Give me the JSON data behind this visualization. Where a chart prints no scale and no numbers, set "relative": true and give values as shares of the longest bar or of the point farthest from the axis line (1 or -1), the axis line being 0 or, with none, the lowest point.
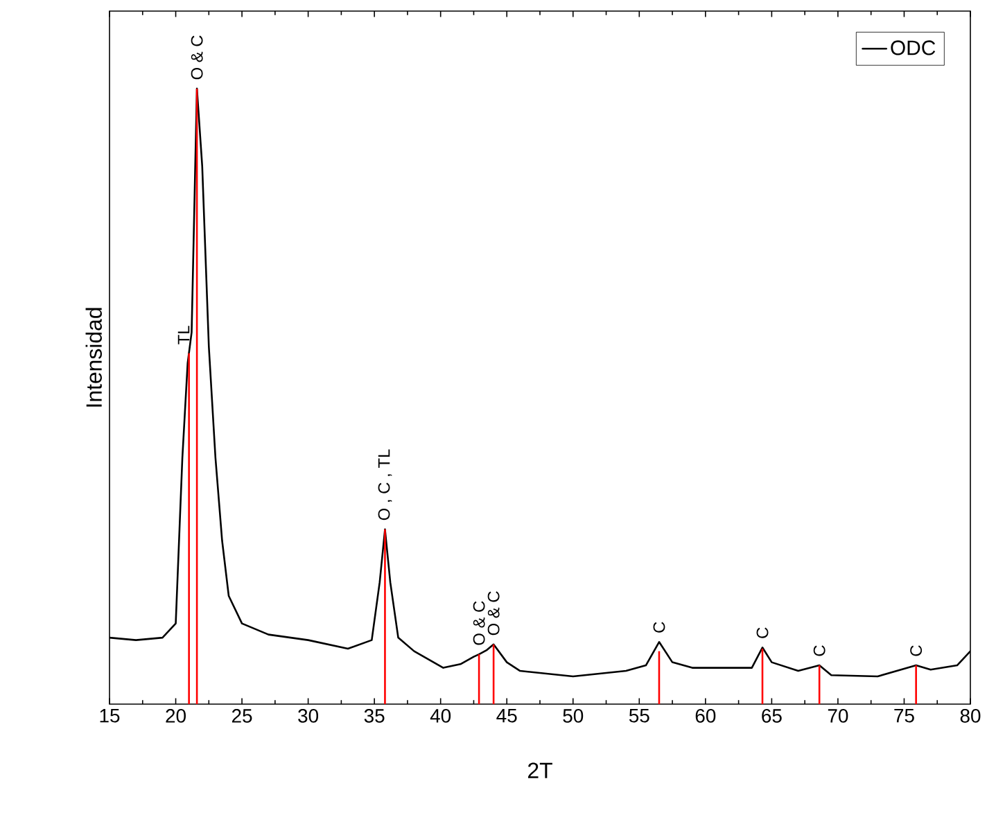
{
  "chart_data": {
    "type": "line",
    "xlabel": "2T",
    "ylabel": "Intensidad",
    "relative": true,
    "legend": "top right",
    "tick_labels": "x",
    "xlim": [
      15,
      80
    ],
    "xticks": [
      15,
      20,
      25,
      30,
      35,
      40,
      45,
      50,
      55,
      60,
      65,
      70,
      75,
      80
    ],
    "series": [
      {
        "name": "ODC",
        "color": "#000000",
        "x": [
          15,
          17,
          19,
          20,
          20.5,
          20.9,
          21.2,
          21.6,
          22.0,
          22.5,
          23,
          23.5,
          24,
          25,
          27,
          30,
          33,
          34.8,
          35.4,
          35.8,
          36.2,
          36.8,
          38,
          40.2,
          41.5,
          42.5,
          42.9,
          43.5,
          44.0,
          45,
          46,
          50,
          54,
          55.5,
          56.5,
          57.5,
          59,
          63.5,
          64.3,
          65,
          67,
          68.6,
          69.5,
          73,
          75.9,
          77,
          79,
          80
        ],
        "values": [
          0.108,
          0.104,
          0.108,
          0.131,
          0.4,
          0.554,
          0.604,
          1.0,
          0.874,
          0.581,
          0.4,
          0.266,
          0.176,
          0.131,
          0.113,
          0.104,
          0.09,
          0.104,
          0.198,
          0.284,
          0.198,
          0.108,
          0.086,
          0.059,
          0.065,
          0.077,
          0.081,
          0.088,
          0.097,
          0.068,
          0.054,
          0.045,
          0.054,
          0.063,
          0.101,
          0.068,
          0.059,
          0.059,
          0.092,
          0.068,
          0.054,
          0.063,
          0.047,
          0.045,
          0.063,
          0.056,
          0.063,
          0.086
        ]
      },
      {
        "type": "bar",
        "color": "#ff0000",
        "x": [
          21.0,
          21.6,
          35.8,
          42.9,
          44.0,
          56.5,
          64.3,
          68.6,
          75.9
        ],
        "values": [
          0.57,
          1.0,
          0.284,
          0.081,
          0.097,
          0.086,
          0.09,
          0.063,
          0.063
        ]
      }
    ],
    "annotations": [
      {
        "text": "TL",
        "x": 20.6,
        "y": 0.57
      },
      {
        "text": "O & C",
        "x": 21.6,
        "y": 1.0
      },
      {
        "text": "O , C , TL",
        "x": 35.8,
        "y": 0.284
      },
      {
        "text": "O & C",
        "x": 42.9,
        "y": 0.081
      },
      {
        "text": "O & C",
        "x": 44.0,
        "y": 0.097
      },
      {
        "text": "C",
        "x": 56.5,
        "y": 0.101
      },
      {
        "text": "C",
        "x": 64.3,
        "y": 0.092
      },
      {
        "text": "C",
        "x": 68.6,
        "y": 0.063
      },
      {
        "text": "C",
        "x": 75.9,
        "y": 0.063
      }
    ]
  }
}
